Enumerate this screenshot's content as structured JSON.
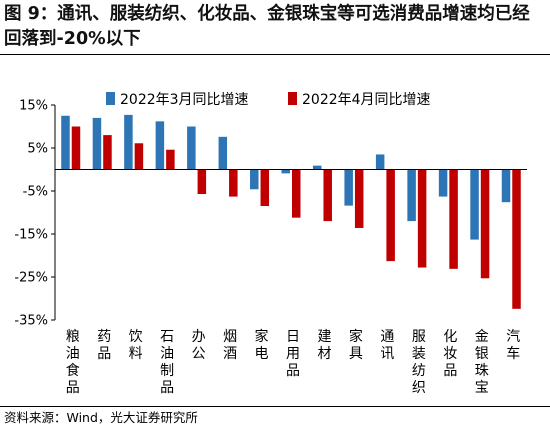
{
  "header": {
    "title": "图 9：通讯、服装纺织、化妆品、金银珠宝等可选消费品增速均已经回落到-20%以下"
  },
  "footer": {
    "source": "资料来源：Wind，光大证券研究所"
  },
  "colors": {
    "series_1": "#2e75b6",
    "series_2": "#c00000",
    "axis": "#000000"
  },
  "chart_data": {
    "type": "bar",
    "title": "",
    "xlabel": "",
    "ylabel": "",
    "ylim": [
      -35,
      15
    ],
    "yticks": [
      15,
      5,
      -5,
      -15,
      -25,
      -35
    ],
    "ytick_labels": [
      "15%",
      "5%",
      "-5%",
      "-15%",
      "-25%",
      "-35%"
    ],
    "grid": false,
    "legend_position": "top",
    "categories": [
      "粮油食品",
      "药品",
      "饮料",
      "石油制品",
      "办公",
      "烟酒",
      "家电",
      "日用品",
      "建材",
      "家具",
      "通讯",
      "服装纺织",
      "化妆品",
      "金银珠宝",
      "汽车"
    ],
    "series": [
      {
        "name": "2022年3月同比增速",
        "color": "#2e75b6",
        "values": [
          12.5,
          12.0,
          12.7,
          11.2,
          10.0,
          7.6,
          -4.6,
          -0.9,
          0.9,
          -8.4,
          3.5,
          -12.0,
          -6.3,
          -16.3,
          -7.6
        ]
      },
      {
        "name": "2022年4月同比增速",
        "color": "#c00000",
        "values": [
          10.0,
          8.0,
          6.1,
          4.6,
          -5.7,
          -6.3,
          -8.5,
          -11.2,
          -12.0,
          -13.6,
          -21.3,
          -22.8,
          -23.1,
          -25.3,
          -32.4
        ]
      }
    ]
  }
}
